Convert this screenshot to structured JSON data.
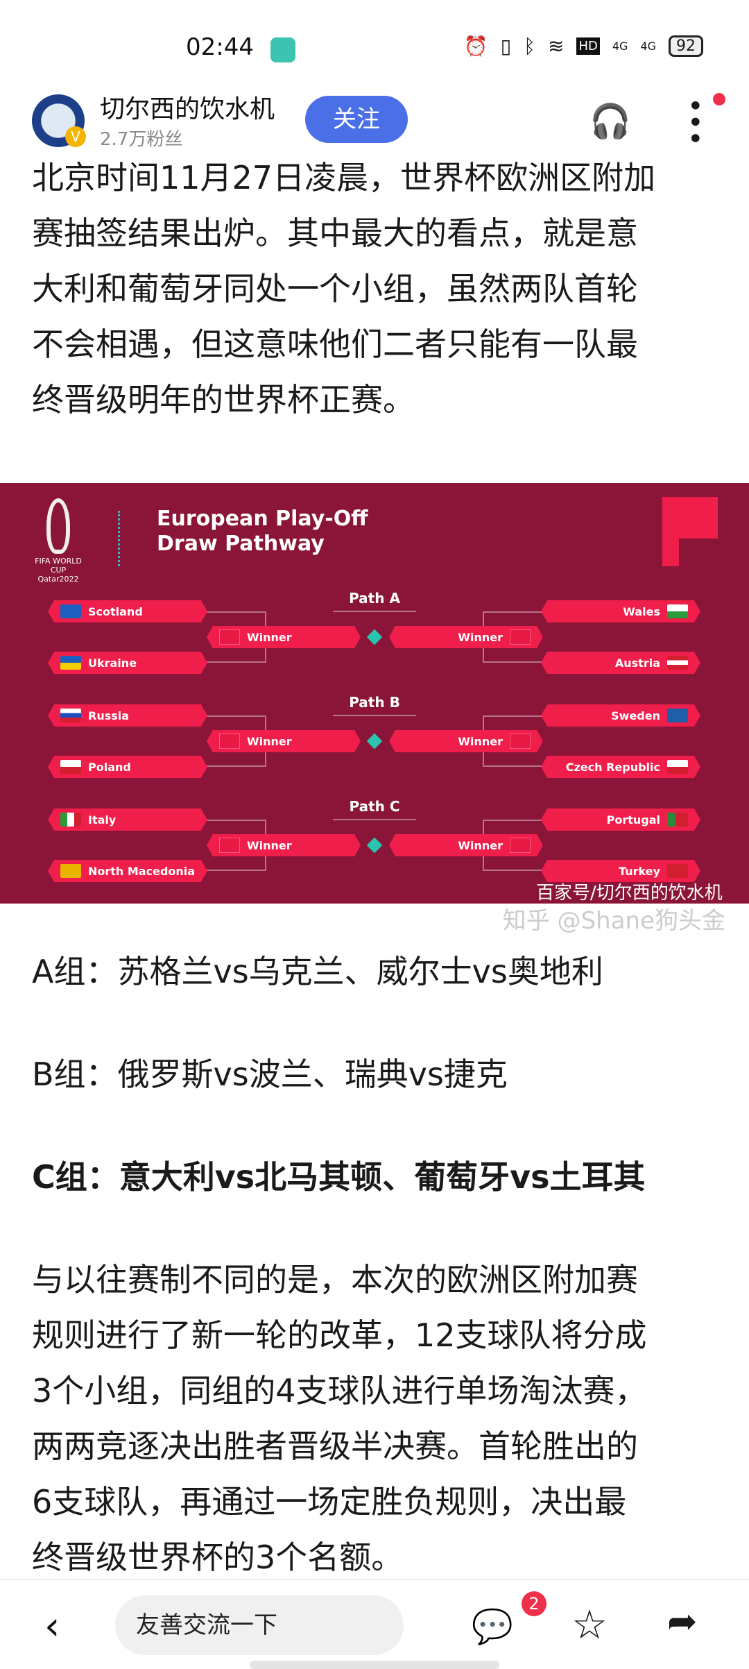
{
  "status": {
    "time": "02:44",
    "battery": "92",
    "icons": [
      "alarm-icon",
      "vibrate-icon",
      "bluetooth-icon",
      "wifi-icon",
      "hd-icon",
      "signal-4g-icon",
      "signal-4g-icon"
    ],
    "hd": "HD",
    "net": "4G"
  },
  "header": {
    "name": "切尔西的饮水机",
    "fans": "2.7万粉丝",
    "follow": "关注",
    "verified": "V"
  },
  "intro": [
    "北京时间11月27日凌晨，世界杯欧洲区附加",
    "赛抽签结果出炉。其中最大的看点，就是意",
    "大利和葡萄牙同处一个小组，虽然两队首轮",
    "不会相遇，但这意味他们二者只能有一队最",
    "终晋级明年的世界杯正赛。"
  ],
  "graphic": {
    "title1": "European Play-Off",
    "title2": "Draw Pathway",
    "fifa": "FIFA WORLD CUP Qatar2022",
    "winner": "Winner",
    "paths": [
      {
        "label": "Path A",
        "left": [
          "Scotland",
          "Ukraine"
        ],
        "right": [
          "Wales",
          "Austria"
        ]
      },
      {
        "label": "Path B",
        "left": [
          "Russia",
          "Poland"
        ],
        "right": [
          "Sweden",
          "Czech Republic"
        ]
      },
      {
        "label": "Path C",
        "left": [
          "Italy",
          "North Macedonia"
        ],
        "right": [
          "Portugal",
          "Turkey"
        ]
      }
    ],
    "flags": {
      "Scotland": "#1f5fbf",
      "Ukraine": "linear-gradient(#1f5fbf 50%,#f5d000 50%)",
      "Wales": "linear-gradient(#fff 50%,#2a9a3a 50%)",
      "Austria": "linear-gradient(#d21f2f 33%,#fff 33%,#fff 66%,#d21f2f 66%)",
      "Russia": "linear-gradient(#fff 33%,#1f4fbf 33%,#1f4fbf 66%,#d21f2f 66%)",
      "Poland": "linear-gradient(#fff 50%,#d21f2f 50%)",
      "Sweden": "#1f5fa8",
      "Czech Republic": "linear-gradient(#fff 50%,#d21f2f 50%)",
      "Italy": "linear-gradient(90deg,#2a9a3a 33%,#fff 33%,#fff 66%,#d21f2f 66%)",
      "North Macedonia": "#e8b400",
      "Portugal": "linear-gradient(90deg,#2a8a3a 40%,#d21f2f 40%)",
      "Turkey": "#d21f2f"
    },
    "watermark": "百家号/切尔西的饮水机"
  },
  "groups": [
    "A组：苏格兰vs乌克兰、威尔士vs奥地利",
    "B组：俄罗斯vs波兰、瑞典vs捷克",
    "C组：意大利vs北马其顿、葡萄牙vs土耳其"
  ],
  "body": [
    "与以往赛制不同的是，本次的欧洲区附加赛",
    "规则进行了新一轮的改革，12支球队将分成",
    "3个小组，同组的4支球队进行单场淘汰赛，",
    "两两竞逐决出胜者晋级半决赛。首轮胜出的",
    "6支球队，再通过一场定胜负规则，决出最",
    "终晋级世界杯的3个名额。"
  ],
  "bottom": {
    "placeholder": "友善交流一下",
    "comment_count": "2",
    "watermark": "知乎 @Shane狗头金"
  }
}
